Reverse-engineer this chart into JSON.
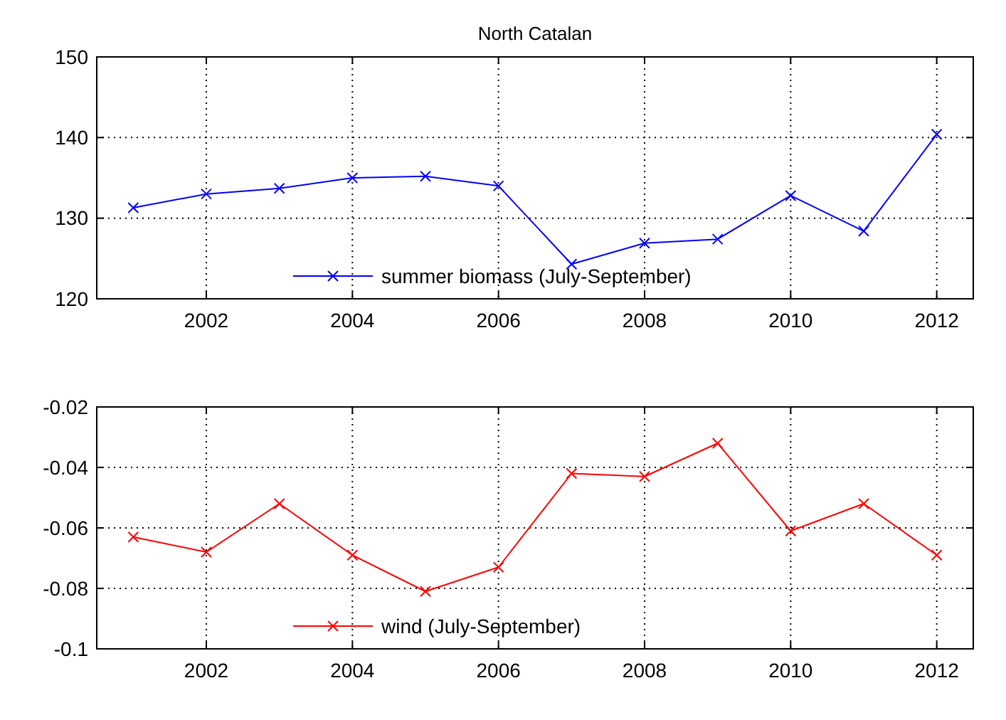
{
  "chart_data": [
    {
      "type": "line",
      "title": "North Catalan",
      "x": [
        2001,
        2002,
        2003,
        2004,
        2005,
        2006,
        2007,
        2008,
        2009,
        2010,
        2011,
        2012
      ],
      "series": [
        {
          "name": "summer biomass (July-September)",
          "color": "#0000ff",
          "values": [
            131.3,
            133,
            133.7,
            135,
            135.2,
            134,
            124.3,
            126.9,
            127.4,
            132.8,
            128.4,
            140.4
          ]
        }
      ],
      "xlim": [
        2000.5,
        2012.5
      ],
      "xticks": [
        2002,
        2004,
        2006,
        2008,
        2010,
        2012
      ],
      "ylim": [
        120,
        150
      ],
      "yticks": [
        120,
        130,
        140,
        150
      ],
      "grid": true,
      "legend": "bottom",
      "marker": "cross",
      "line_style": "solid"
    },
    {
      "type": "line",
      "x": [
        2001,
        2002,
        2003,
        2004,
        2005,
        2006,
        2007,
        2008,
        2009,
        2010,
        2011,
        2012
      ],
      "series": [
        {
          "name": "wind (July-September)",
          "color": "#ff0000",
          "values": [
            -0.063,
            -0.068,
            -0.052,
            -0.069,
            -0.081,
            -0.073,
            -0.042,
            -0.043,
            -0.032,
            -0.061,
            -0.052,
            -0.069
          ]
        }
      ],
      "xlim": [
        2000.5,
        2012.5
      ],
      "xticks": [
        2002,
        2004,
        2006,
        2008,
        2010,
        2012
      ],
      "ylim": [
        -0.1,
        -0.02
      ],
      "yticks": [
        -0.1,
        -0.08,
        -0.06,
        -0.04,
        -0.02
      ],
      "grid": true,
      "legend": "bottom",
      "marker": "cross",
      "line_style": "solid"
    }
  ]
}
